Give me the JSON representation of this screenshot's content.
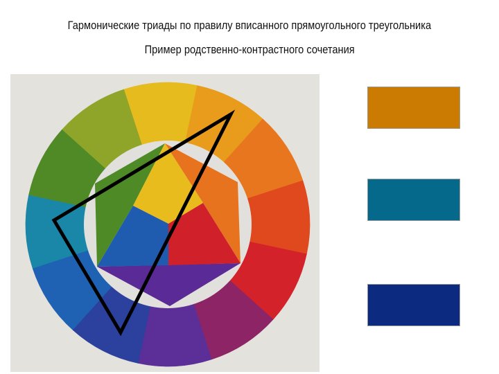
{
  "title": "Гармонические триады по правилу вписанного прямоугольного треугольника",
  "subtitle": "Пример родственно-контрастного сочетания",
  "wheel": {
    "outer_colors": [
      "#e6bb1e",
      "#e99b1c",
      "#e8761f",
      "#e0481e",
      "#d4222a",
      "#8c2466",
      "#5c2e98",
      "#2c409e",
      "#1f62b4",
      "#1a86a8",
      "#4f8a27",
      "#8fa52a"
    ],
    "inner": {
      "yellow": "#e8bc1c",
      "red": "#d0202a",
      "blue": "#1f5cb0",
      "orange": "#e8731e",
      "violet": "#5a2a96",
      "green": "#4e8a26"
    },
    "ring_background": "#e2e0dc",
    "triad_outline_color": "#000000"
  },
  "swatches": [
    {
      "color": "#cc7b02"
    },
    {
      "color": "#05698b"
    },
    {
      "color": "#0b2a80"
    }
  ]
}
